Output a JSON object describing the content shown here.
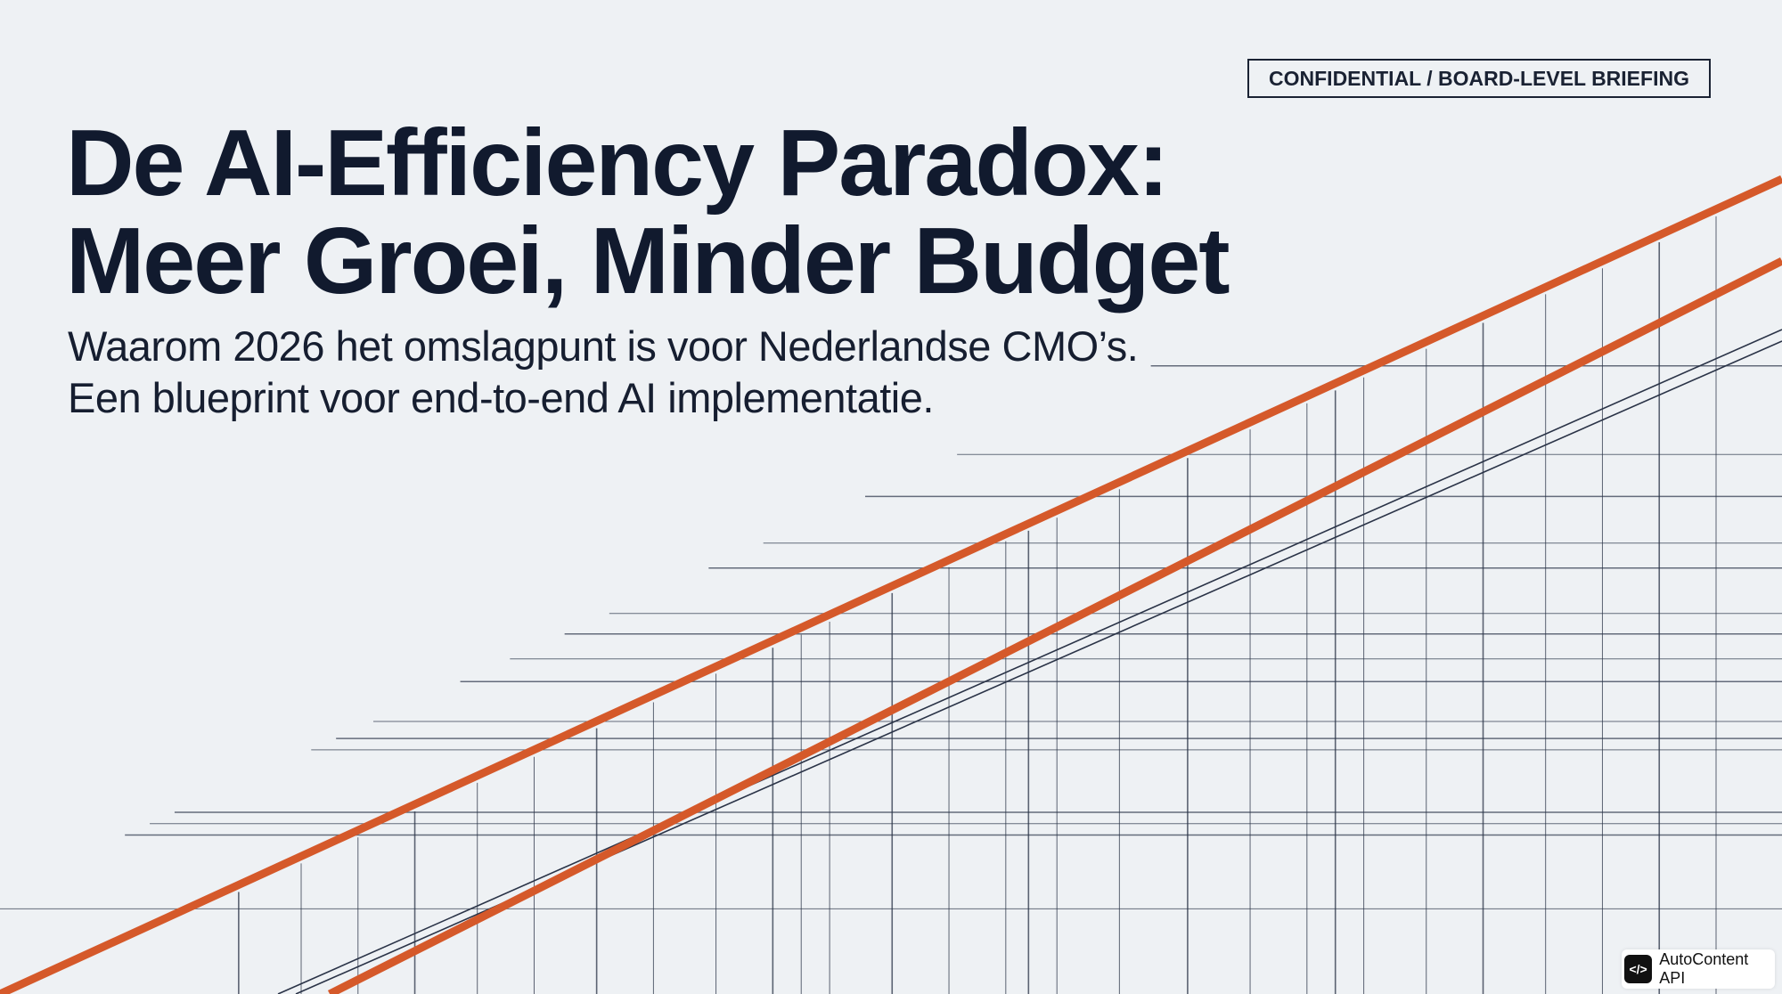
{
  "badge": "CONFIDENTIAL / BOARD-LEVEL BRIEFING",
  "title": {
    "lines": [
      "De AI-Efficiency Paradox:",
      "Meer Groei, Minder Budget"
    ]
  },
  "subtitle": {
    "lines": [
      "Waarom 2026 het omslagpunt is voor Nederlandse CMO’s.",
      "Een blueprint voor end-to-end AI implementatie."
    ]
  },
  "watermark": "AutoContent API"
}
